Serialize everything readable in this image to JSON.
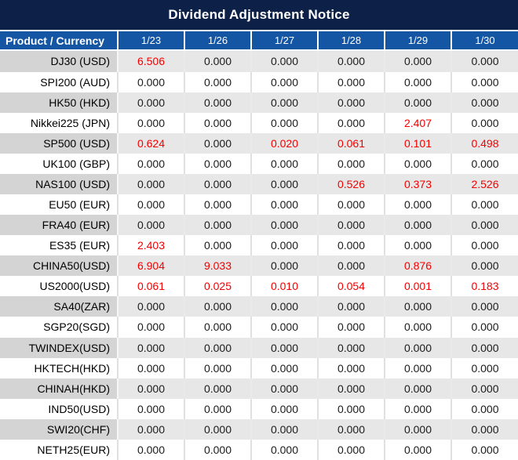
{
  "title": "Dividend Adjustment Notice",
  "columns": {
    "product": "Product / Currency",
    "dates": [
      "1/23",
      "1/26",
      "1/27",
      "1/28",
      "1/29",
      "1/30"
    ]
  },
  "rows": [
    {
      "product": "DJ30 (USD)",
      "values": [
        "6.506",
        "0.000",
        "0.000",
        "0.000",
        "0.000",
        "0.000"
      ],
      "red": [
        0
      ]
    },
    {
      "product": "SPI200 (AUD)",
      "values": [
        "0.000",
        "0.000",
        "0.000",
        "0.000",
        "0.000",
        "0.000"
      ],
      "red": []
    },
    {
      "product": "HK50 (HKD)",
      "values": [
        "0.000",
        "0.000",
        "0.000",
        "0.000",
        "0.000",
        "0.000"
      ],
      "red": []
    },
    {
      "product": "Nikkei225 (JPN)",
      "values": [
        "0.000",
        "0.000",
        "0.000",
        "0.000",
        "2.407",
        "0.000"
      ],
      "red": [
        4
      ]
    },
    {
      "product": "SP500 (USD)",
      "values": [
        "0.624",
        "0.000",
        "0.020",
        "0.061",
        "0.101",
        "0.498"
      ],
      "red": [
        0,
        2,
        3,
        4,
        5
      ]
    },
    {
      "product": "UK100 (GBP)",
      "values": [
        "0.000",
        "0.000",
        "0.000",
        "0.000",
        "0.000",
        "0.000"
      ],
      "red": []
    },
    {
      "product": "NAS100 (USD)",
      "values": [
        "0.000",
        "0.000",
        "0.000",
        "0.526",
        "0.373",
        "2.526"
      ],
      "red": [
        3,
        4,
        5
      ]
    },
    {
      "product": "EU50 (EUR)",
      "values": [
        "0.000",
        "0.000",
        "0.000",
        "0.000",
        "0.000",
        "0.000"
      ],
      "red": []
    },
    {
      "product": "FRA40 (EUR)",
      "values": [
        "0.000",
        "0.000",
        "0.000",
        "0.000",
        "0.000",
        "0.000"
      ],
      "red": []
    },
    {
      "product": "ES35 (EUR)",
      "values": [
        "2.403",
        "0.000",
        "0.000",
        "0.000",
        "0.000",
        "0.000"
      ],
      "red": [
        0
      ]
    },
    {
      "product": "CHINA50(USD)",
      "values": [
        "6.904",
        "9.033",
        "0.000",
        "0.000",
        "0.876",
        "0.000"
      ],
      "red": [
        0,
        1,
        4
      ]
    },
    {
      "product": "US2000(USD)",
      "values": [
        "0.061",
        "0.025",
        "0.010",
        "0.054",
        "0.001",
        "0.183"
      ],
      "red": [
        0,
        1,
        2,
        3,
        4,
        5
      ]
    },
    {
      "product": "SA40(ZAR)",
      "values": [
        "0.000",
        "0.000",
        "0.000",
        "0.000",
        "0.000",
        "0.000"
      ],
      "red": []
    },
    {
      "product": "SGP20(SGD)",
      "values": [
        "0.000",
        "0.000",
        "0.000",
        "0.000",
        "0.000",
        "0.000"
      ],
      "red": []
    },
    {
      "product": "TWINDEX(USD)",
      "values": [
        "0.000",
        "0.000",
        "0.000",
        "0.000",
        "0.000",
        "0.000"
      ],
      "red": []
    },
    {
      "product": "HKTECH(HKD)",
      "values": [
        "0.000",
        "0.000",
        "0.000",
        "0.000",
        "0.000",
        "0.000"
      ],
      "red": []
    },
    {
      "product": "CHINAH(HKD)",
      "values": [
        "0.000",
        "0.000",
        "0.000",
        "0.000",
        "0.000",
        "0.000"
      ],
      "red": []
    },
    {
      "product": "IND50(USD)",
      "values": [
        "0.000",
        "0.000",
        "0.000",
        "0.000",
        "0.000",
        "0.000"
      ],
      "red": []
    },
    {
      "product": "SWI20(CHF)",
      "values": [
        "0.000",
        "0.000",
        "0.000",
        "0.000",
        "0.000",
        "0.000"
      ],
      "red": []
    },
    {
      "product": "NETH25(EUR)",
      "values": [
        "0.000",
        "0.000",
        "0.000",
        "0.000",
        "0.000",
        "0.000"
      ],
      "red": []
    }
  ],
  "colors": {
    "title_bg": "#0D2148",
    "header_bg": "#1456A4",
    "row_gray_product": "#D4D4D4",
    "row_gray_value": "#E7E7E7",
    "negative_red": "#F40000"
  }
}
